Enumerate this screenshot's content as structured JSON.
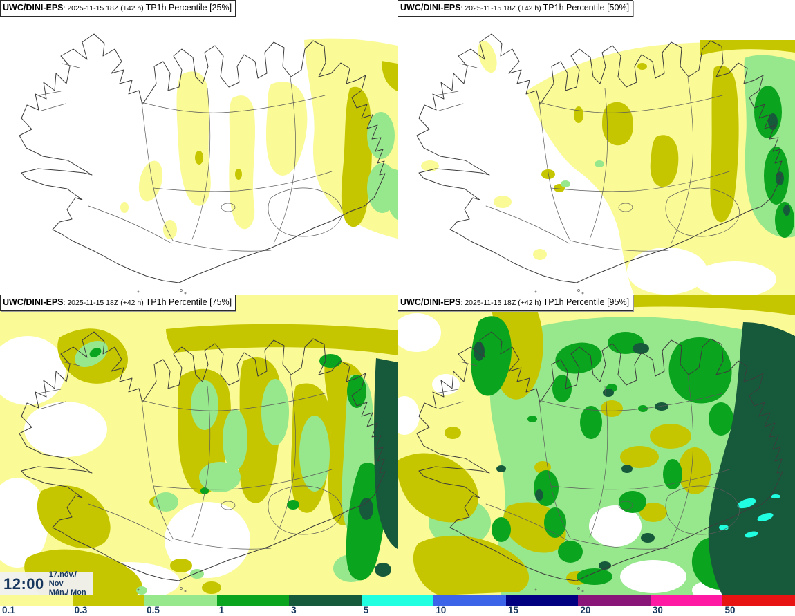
{
  "panels": [
    {
      "model": "UWC/DINI-EPS",
      "meta": ": 2025-11-15 18Z (+42 h) ",
      "param": "TP1h Percentile [25%]",
      "percentile": "25%"
    },
    {
      "model": "UWC/DINI-EPS",
      "meta": ": 2025-11-15 18Z (+42 h) ",
      "param": "TP1h Percentile [50%]",
      "percentile": "50%"
    },
    {
      "model": "UWC/DINI-EPS",
      "meta": ": 2025-11-15 18Z (+42 h) ",
      "param": "TP1h Percentile [75%]",
      "percentile": "75%"
    },
    {
      "model": "UWC/DINI-EPS",
      "meta": ": 2025-11-15 18Z (+42 h) ",
      "param": "TP1h Percentile [95%]",
      "percentile": "95%"
    }
  ],
  "clock": {
    "time": "12:00",
    "date": "17.nóv./ Nov",
    "day": "Mán./ Mon"
  },
  "colorbar": {
    "ticks": [
      "0.1",
      "0.3",
      "0.5",
      "1",
      "3",
      "5",
      "10",
      "15",
      "20",
      "30",
      "50"
    ],
    "colors": [
      "#FAFA96",
      "#C6C600",
      "#97E78D",
      "#0AA41E",
      "#17593B",
      "#20FFE0",
      "#3C64E8",
      "#000080",
      "#8A1578",
      "#FF19A3",
      "#E81414"
    ],
    "label_color": "#17365D"
  }
}
